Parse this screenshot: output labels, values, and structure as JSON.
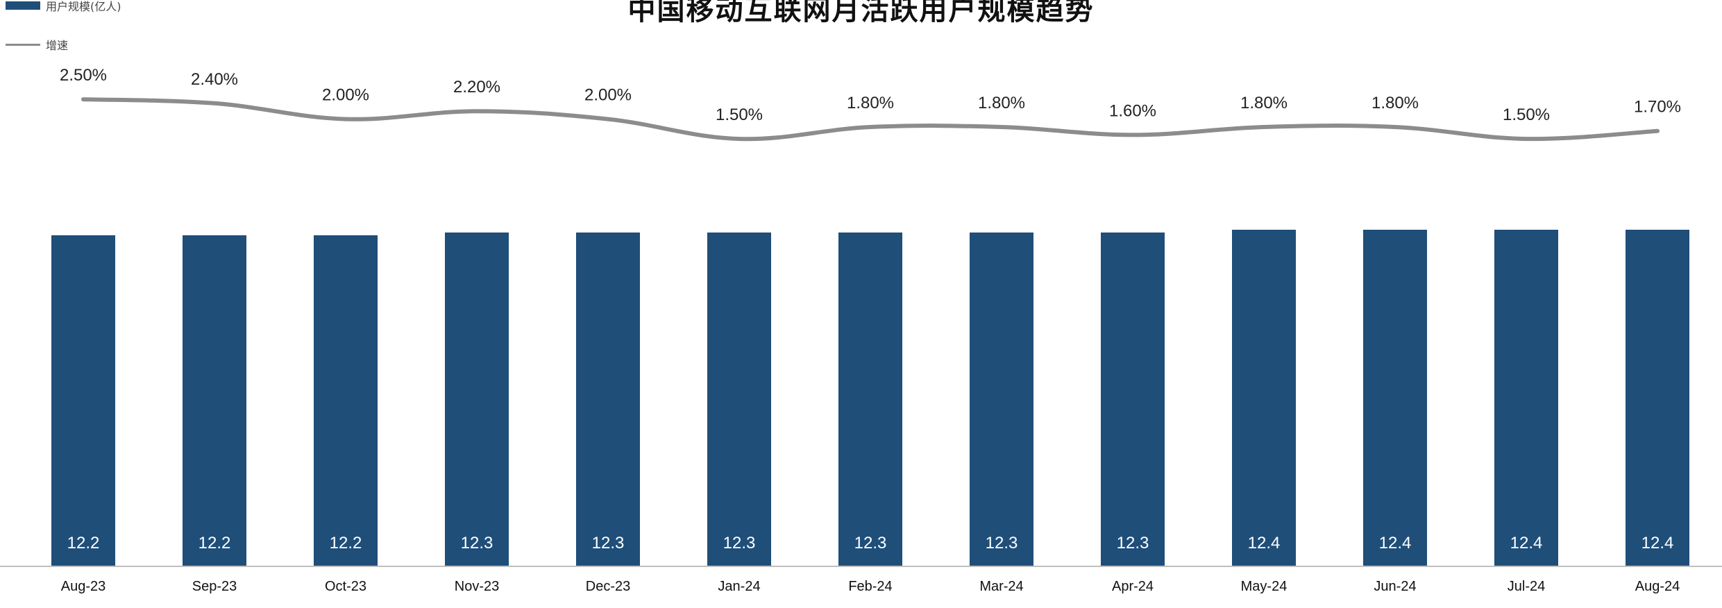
{
  "title": "中国移动互联网月活跃用户规模趋势",
  "colors": {
    "bar": "#1F4E79",
    "line": "#8C8C8C",
    "axis": "#BFBFBF"
  },
  "chart_data": {
    "type": "bar",
    "categories": [
      "Aug-23",
      "Sep-23",
      "Oct-23",
      "Nov-23",
      "Dec-23",
      "Jan-24",
      "Feb-24",
      "Mar-24",
      "Apr-24",
      "May-24",
      "Jun-24",
      "Jul-24",
      "Aug-24"
    ],
    "series": [
      {
        "name": "用户规模(亿人)",
        "type": "bar",
        "values": [
          12.2,
          12.2,
          12.2,
          12.3,
          12.3,
          12.3,
          12.3,
          12.3,
          12.3,
          12.4,
          12.4,
          12.4,
          12.4
        ],
        "labels": [
          "12.2",
          "12.2",
          "12.2",
          "12.3",
          "12.3",
          "12.3",
          "12.3",
          "12.3",
          "12.3",
          "12.4",
          "12.4",
          "12.4",
          "12.4"
        ]
      },
      {
        "name": "增速",
        "type": "line",
        "values": [
          2.5,
          2.4,
          2.0,
          2.2,
          2.0,
          1.5,
          1.8,
          1.8,
          1.6,
          1.8,
          1.8,
          1.5,
          1.7
        ],
        "labels": [
          "2.50%",
          "2.40%",
          "2.00%",
          "2.20%",
          "2.00%",
          "1.50%",
          "1.80%",
          "1.80%",
          "1.60%",
          "1.80%",
          "1.80%",
          "1.50%",
          "1.70%"
        ]
      }
    ],
    "legend_position": "top-left",
    "grid": false
  }
}
